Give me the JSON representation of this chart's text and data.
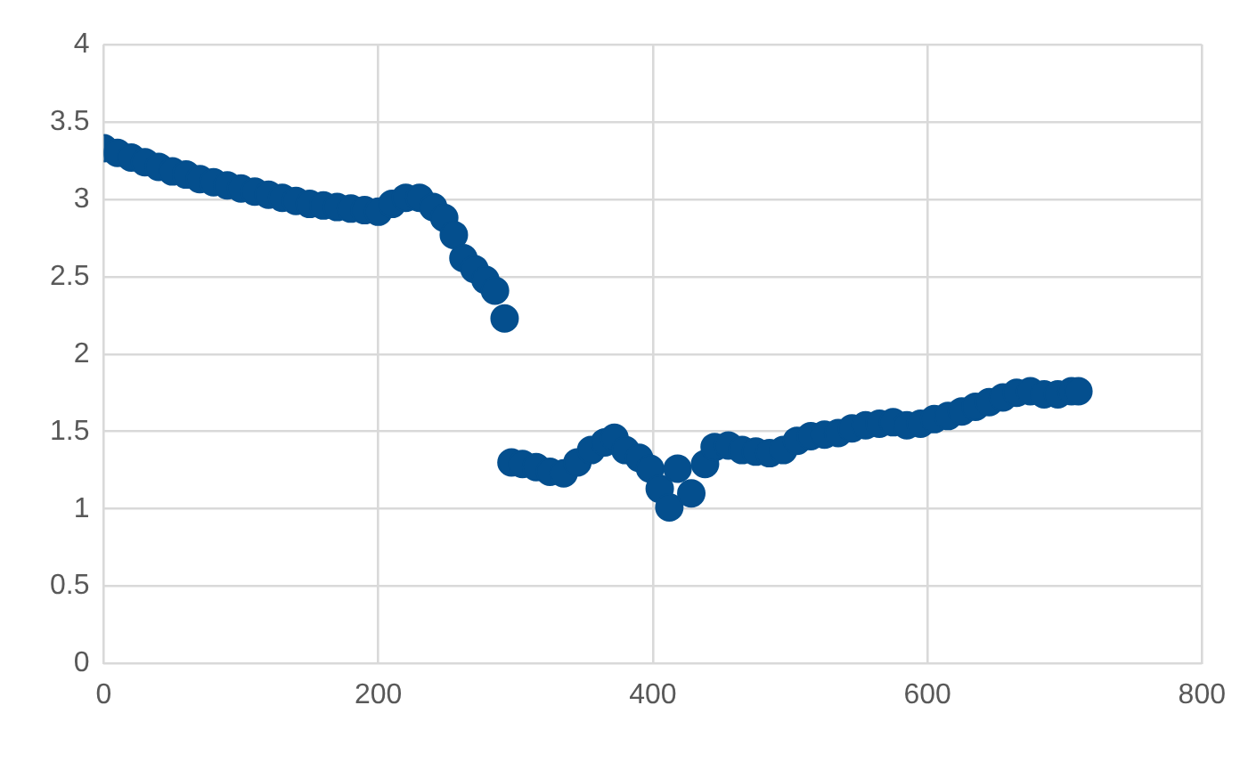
{
  "chart_data": {
    "type": "scatter",
    "xlim": [
      0,
      800
    ],
    "xticks": [
      0,
      200,
      400,
      600,
      800
    ],
    "ylim": [
      0,
      4
    ],
    "yticks": [
      0,
      0.5,
      1,
      1.5,
      2,
      2.5,
      3,
      3.5,
      4
    ],
    "grid": true,
    "legend": false,
    "marker": "circle",
    "series": [
      {
        "color": "#044f8e",
        "x": [
          0,
          10,
          20,
          30,
          40,
          50,
          60,
          70,
          80,
          90,
          100,
          110,
          120,
          130,
          140,
          150,
          160,
          170,
          180,
          190,
          200,
          210,
          220,
          230,
          240,
          248,
          255,
          262,
          270,
          278,
          285,
          292,
          297,
          305,
          315,
          325,
          335,
          345,
          355,
          365,
          372,
          380,
          390,
          398,
          405,
          412,
          418,
          428,
          438,
          445,
          455,
          465,
          475,
          485,
          495,
          505,
          515,
          525,
          535,
          545,
          555,
          565,
          575,
          585,
          595,
          605,
          615,
          625,
          635,
          645,
          655,
          665,
          675,
          685,
          695,
          705,
          710
        ],
        "values": [
          3.33,
          3.3,
          3.27,
          3.24,
          3.21,
          3.18,
          3.16,
          3.13,
          3.11,
          3.09,
          3.07,
          3.05,
          3.03,
          3.01,
          2.99,
          2.97,
          2.96,
          2.95,
          2.94,
          2.93,
          2.92,
          2.97,
          3.01,
          3.01,
          2.95,
          2.88,
          2.77,
          2.62,
          2.55,
          2.48,
          2.41,
          2.23,
          1.3,
          1.29,
          1.27,
          1.24,
          1.23,
          1.3,
          1.38,
          1.43,
          1.46,
          1.38,
          1.33,
          1.26,
          1.13,
          1.01,
          1.26,
          1.1,
          1.29,
          1.4,
          1.41,
          1.38,
          1.37,
          1.36,
          1.38,
          1.44,
          1.47,
          1.48,
          1.49,
          1.52,
          1.54,
          1.55,
          1.56,
          1.54,
          1.55,
          1.58,
          1.6,
          1.63,
          1.66,
          1.69,
          1.72,
          1.75,
          1.76,
          1.74,
          1.74,
          1.76,
          1.76
        ]
      }
    ]
  }
}
